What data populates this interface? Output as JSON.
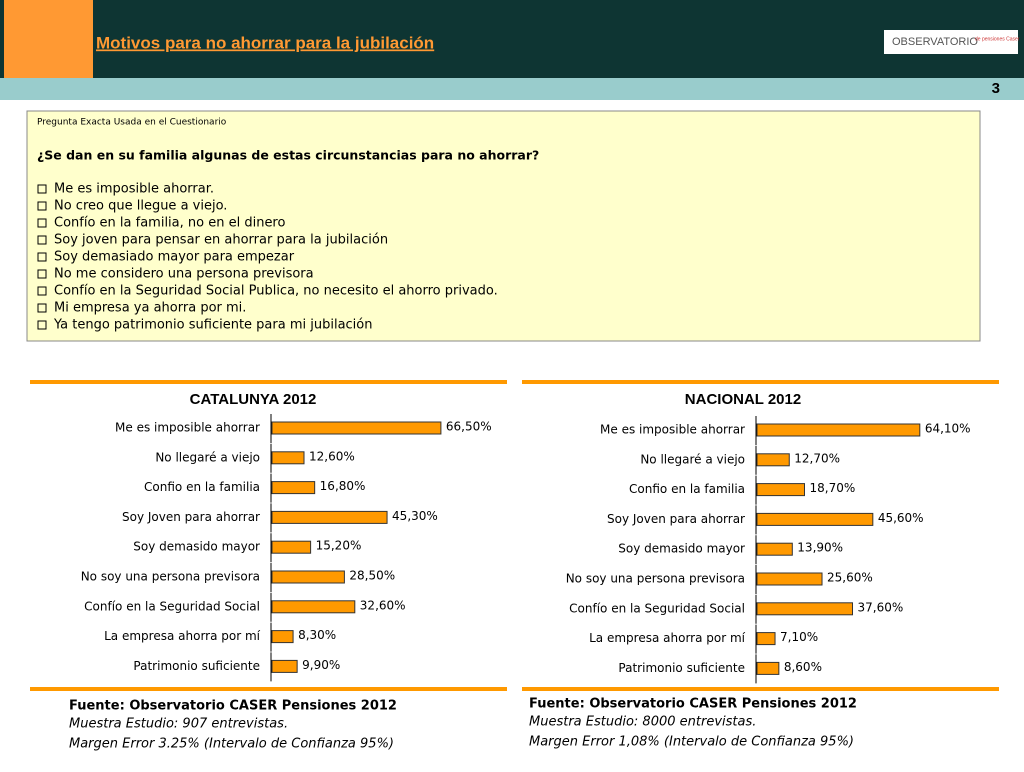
{
  "header": {
    "title": "Motivos para no ahorrar para la jubilación",
    "logo": "OBSERVATORIO",
    "logo_sub": "de pensiones Caser",
    "page": "3"
  },
  "question": {
    "label": "Pregunta Exacta Usada en el Cuestionario",
    "text": "¿Se dan en su familia algunas de estas circunstancias para no ahorrar?",
    "options": [
      "Me es imposible ahorrar.",
      "No creo que llegue a viejo.",
      "Confío en la familia, no en el dinero",
      "Soy joven para pensar en ahorrar para la jubilación",
      "Soy demasiado mayor para empezar",
      "No me considero una persona previsora",
      "Confío en la Seguridad Social Publica, no necesito el ahorro privado.",
      "Mi empresa ya ahorra por mi.",
      "Ya tengo patrimonio suficiente para mi jubilación"
    ]
  },
  "chart_data": [
    {
      "type": "bar",
      "orientation": "horizontal",
      "title": "CATALUNYA 2012",
      "color": "#ff9900",
      "categories": [
        "Me es imposible ahorrar",
        "No llegaré a viejo",
        "Confio en la familia",
        "Soy Joven para ahorrar",
        "Soy demasido mayor",
        "No soy una persona previsora",
        "Confío en la Seguridad Social",
        "La empresa ahorra por mí",
        "Patrimonio suficiente"
      ],
      "values": [
        66.5,
        12.6,
        16.8,
        45.3,
        15.2,
        28.5,
        32.6,
        8.3,
        9.9
      ],
      "value_labels": [
        "66,50%",
        "12,60%",
        "16,80%",
        "45,30%",
        "15,20%",
        "28,50%",
        "32,60%",
        "8,30%",
        "9,90%"
      ],
      "source": "Fuente: Observatorio CASER Pensiones 2012",
      "sample": "Muestra Estudio: 907 entrevistas.",
      "margin": "Margen Error 3.25% (Intervalo de Confianza 95%)"
    },
    {
      "type": "bar",
      "orientation": "horizontal",
      "title": "NACIONAL 2012",
      "color": "#ff9900",
      "categories": [
        "Me es imposible ahorrar",
        "No llegaré a viejo",
        "Confio en la familia",
        "Soy Joven para ahorrar",
        "Soy demasido mayor",
        "No soy una persona previsora",
        "Confío en la Seguridad Social",
        "La empresa ahorra por mí",
        "Patrimonio suficiente"
      ],
      "values": [
        64.1,
        12.7,
        18.7,
        45.6,
        13.9,
        25.6,
        37.6,
        7.1,
        8.6
      ],
      "value_labels": [
        "64,10%",
        "12,70%",
        "18,70%",
        "45,60%",
        "13,90%",
        "25,60%",
        "37,60%",
        "7,10%",
        "8,60%"
      ],
      "source": "Fuente: Observatorio CASER Pensiones 2012",
      "sample": "Muestra Estudio: 8000 entrevistas.",
      "margin": "Margen Error 1,08% (Intervalo de Confianza 95%)"
    }
  ]
}
